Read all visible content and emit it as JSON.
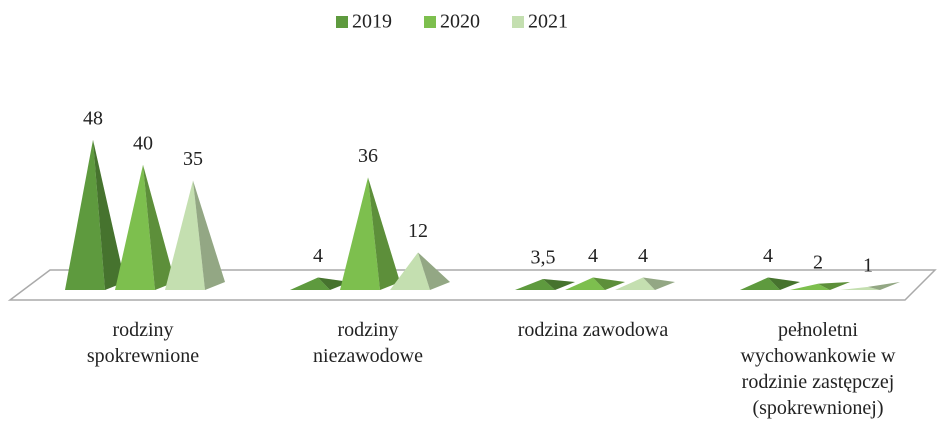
{
  "chart_data": {
    "type": "pyramid",
    "categories": [
      "rodziny spokrewnione",
      "rodziny niezawodowe",
      "rodzina zawodowa",
      "pełnoletni wychowankowie w rodzinie zastępczej (spokrewnionej)"
    ],
    "series": [
      {
        "name": "2019",
        "color": "#5e9a3e",
        "values": [
          48,
          4,
          3.5,
          4
        ],
        "value_labels": [
          "48",
          "4",
          "3,5",
          "4"
        ]
      },
      {
        "name": "2020",
        "color": "#7dbf4e",
        "values": [
          40,
          36,
          4,
          2
        ]
      },
      {
        "name": "2021",
        "color": "#c4dfb0",
        "values": [
          35,
          12,
          4,
          1
        ]
      }
    ],
    "legend": "top"
  }
}
